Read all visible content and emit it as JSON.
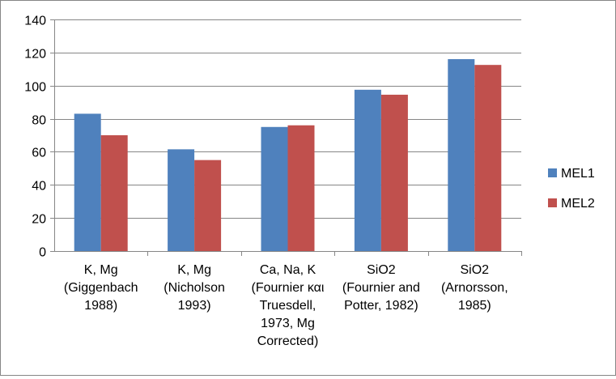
{
  "chart_data": {
    "type": "bar",
    "title": "",
    "xlabel": "",
    "ylabel": "",
    "ylim": [
      0,
      140
    ],
    "yticks": [
      0,
      20,
      40,
      60,
      80,
      100,
      120,
      140
    ],
    "grid": true,
    "legend_position": "right",
    "categories": [
      [
        "K, Mg",
        "(Giggenbach",
        "1988)"
      ],
      [
        "K, Mg",
        "(Nicholson",
        "1993)"
      ],
      [
        "Ca, Na, K",
        "(Fournier και",
        "Truesdell,",
        "1973, Mg",
        "Corrected)"
      ],
      [
        "SiO2",
        "(Fournier and",
        "Potter, 1982)"
      ],
      [
        "SiO2",
        "(Arnorsson,",
        "1985)"
      ]
    ],
    "series": [
      {
        "name": "MEL1",
        "color": "#4F81BD",
        "values": [
          83,
          61.5,
          75,
          97.5,
          116
        ]
      },
      {
        "name": "MEL2",
        "color": "#C0504D",
        "values": [
          70,
          55,
          76,
          94.5,
          112.5
        ]
      }
    ]
  }
}
